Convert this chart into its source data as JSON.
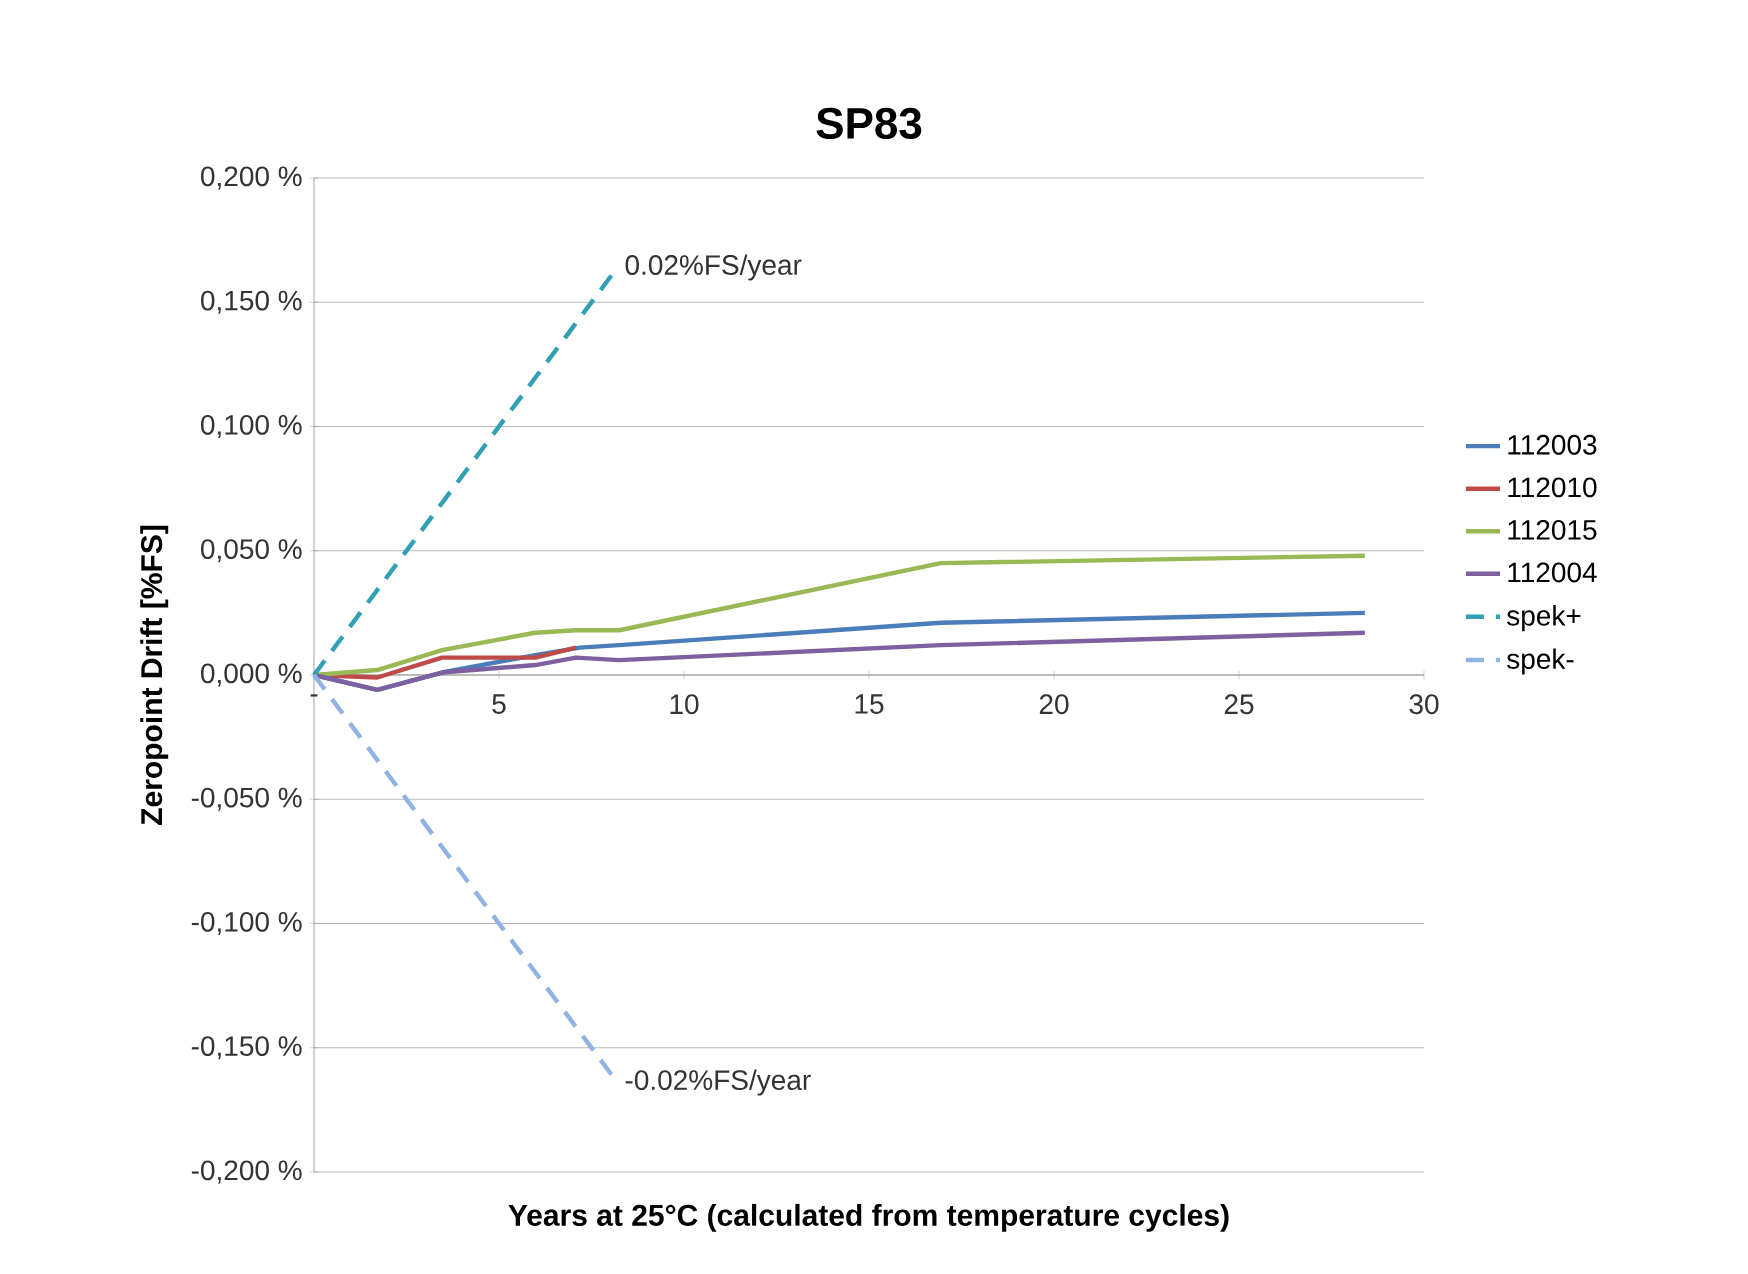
{
  "chart_data": {
    "type": "line",
    "title": "SP83",
    "xlabel": "Years at 25°C (calculated from temperature cycles)",
    "ylabel": "Zeropoint Drift [%FS]",
    "xlim": [
      0,
      30
    ],
    "xticks": [
      {
        "value": 0,
        "label": "-"
      },
      5,
      10,
      15,
      20,
      25,
      30
    ],
    "ylim": [
      -0.2,
      0.2
    ],
    "yticks": [
      {
        "value": -0.2,
        "label": "-0,200 %"
      },
      {
        "value": -0.15,
        "label": "-0,150 %"
      },
      {
        "value": -0.1,
        "label": "-0,100 %"
      },
      {
        "value": -0.05,
        "label": "-0,050 %"
      },
      {
        "value": 0,
        "label": "0,000 %"
      },
      {
        "value": 0.05,
        "label": "0,050 %"
      },
      {
        "value": 0.1,
        "label": "0,100 %"
      },
      {
        "value": 0.15,
        "label": "0,150 %"
      },
      {
        "value": 0.2,
        "label": "0,200 %"
      }
    ],
    "grid": "y",
    "legend": "right",
    "marker": "none",
    "series": [
      {
        "name": "112003",
        "color": "#4a7ebb",
        "x": [
          0,
          1.71,
          3.46,
          5.98,
          7.18,
          8.25,
          16.94,
          28.4
        ],
        "values": [
          0,
          -0.006,
          0.001,
          0.008,
          0.011,
          0.012,
          0.021,
          0.025
        ]
      },
      {
        "name": "112010",
        "color": "#be4b48",
        "x": [
          0,
          1.71,
          3.46,
          5.98,
          7.08
        ],
        "values": [
          0,
          -0.001,
          0.007,
          0.007,
          0.011
        ]
      },
      {
        "name": "112015",
        "color": "#98b954",
        "x": [
          0,
          1.71,
          3.46,
          5.98,
          7.08,
          8.25,
          16.94,
          28.4
        ],
        "values": [
          0,
          0.002,
          0.01,
          0.017,
          0.018,
          0.018,
          0.045,
          0.048
        ]
      },
      {
        "name": "112004",
        "color": "#7d60a0",
        "x": [
          0,
          1.71,
          3.46,
          5.98,
          7.08,
          8.25,
          16.94,
          28.4
        ],
        "values": [
          0,
          -0.006,
          0.001,
          0.004,
          0.007,
          0.006,
          0.012,
          0.017
        ]
      },
      {
        "name": "spek+",
        "color": "#31a0b5",
        "line_style": "dashed",
        "x": [
          0,
          8.2
        ],
        "values": [
          0,
          0.164
        ]
      },
      {
        "name": "spek-",
        "color": "#8fb4e3",
        "line_style": "dashed",
        "x": [
          0,
          8.2
        ],
        "values": [
          0,
          -0.164
        ]
      }
    ],
    "annotations": [
      {
        "text": "0.02%FS/year",
        "x": 8.2,
        "y": 0.164
      },
      {
        "text": "-0.02%FS/year",
        "x": 8.2,
        "y": -0.164
      }
    ]
  }
}
